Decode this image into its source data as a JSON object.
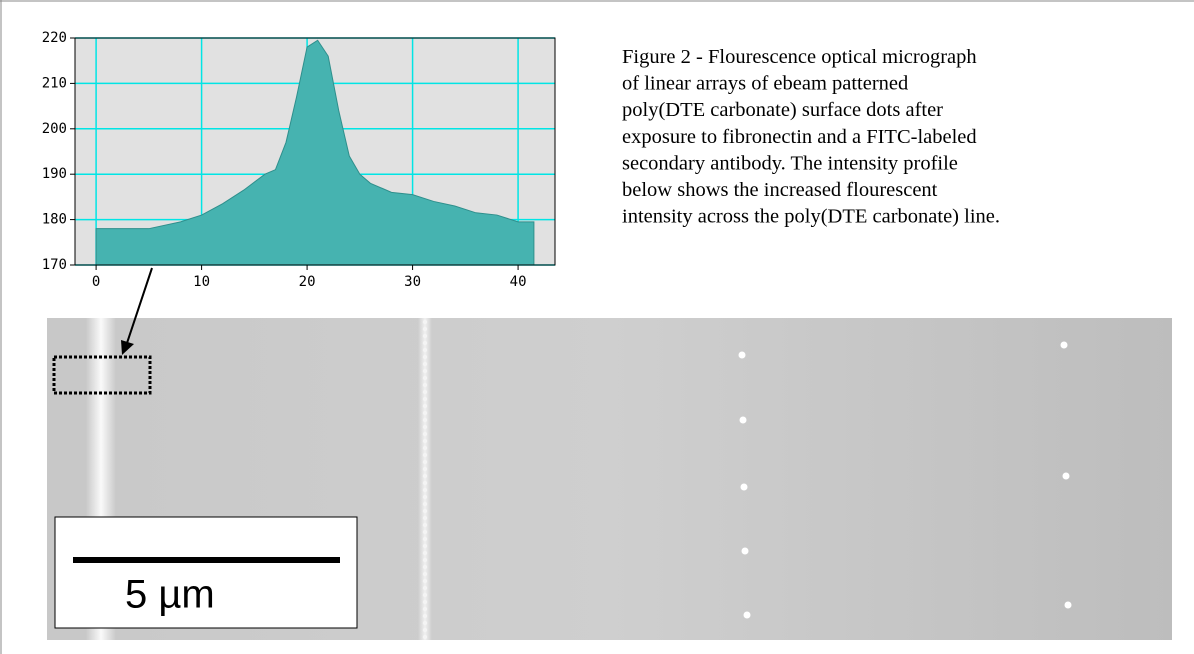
{
  "chart_data": {
    "type": "area",
    "x": [
      0,
      5,
      8,
      10,
      12,
      14,
      16,
      17,
      18,
      19,
      20,
      21,
      22,
      23,
      24,
      25,
      26,
      28,
      30,
      32,
      34,
      36,
      38,
      40,
      41.5
    ],
    "values": [
      178,
      178,
      179.5,
      181,
      183.5,
      186.5,
      190,
      191,
      197,
      207,
      218,
      219.5,
      216,
      204,
      194,
      190,
      188,
      186,
      185.5,
      184,
      183,
      181.5,
      181,
      179.5,
      179.5
    ],
    "color": "#46b3b0",
    "xlim": [
      -2,
      43.5
    ],
    "ylim": [
      170,
      220
    ],
    "xticks": [
      0,
      10,
      20,
      30,
      40
    ],
    "yticks": [
      170,
      180,
      190,
      200,
      210,
      220
    ],
    "grid": true
  },
  "caption": [
    "Figure 2 - Flourescence optical micrograph",
    "of linear arrays of ebeam patterned",
    "poly(DTE carbonate) surface dots after",
    "exposure to fibronectin and a FITC-labeled",
    "secondary antibody.  The intensity profile",
    "below shows the increased flourescent",
    "intensity across the poly(DTE carbonate) line."
  ],
  "scale_bar": "5 µm"
}
